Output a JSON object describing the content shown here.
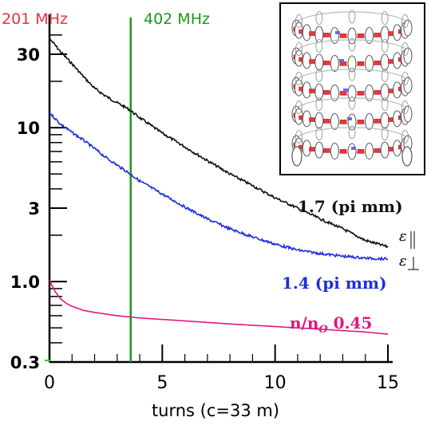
{
  "chart_data": {
    "type": "line",
    "x_axis": {
      "label": "turns (c=33 m)",
      "range": [
        0,
        15.5
      ],
      "ticks": [
        0,
        5,
        10,
        15
      ],
      "tick_labels": [
        "0",
        "5",
        "10",
        "15"
      ]
    },
    "y_axis": {
      "scale": "log",
      "range": [
        0.3,
        45
      ],
      "ticks": [
        0.3,
        1.0,
        3,
        10,
        30
      ],
      "tick_labels": [
        "0.3",
        "1.0",
        "3",
        "10",
        "30"
      ]
    },
    "markers": [
      {
        "label": "201 MHz",
        "x": null,
        "color": "#e8353a"
      },
      {
        "label": "402 MHz",
        "x": 3.6,
        "color": "#1a9a1a"
      }
    ],
    "series": [
      {
        "label": "1.7 (pi mm)",
        "symbol": "ε∥",
        "color": "#111111",
        "x": [
          0,
          0.5,
          1,
          1.5,
          2,
          2.5,
          3,
          3.5,
          4,
          5,
          6,
          7,
          8,
          9,
          10,
          11,
          12,
          13,
          14,
          15
        ],
        "y": [
          38,
          31,
          26,
          21.5,
          18,
          16,
          14.5,
          13.2,
          11.6,
          9.2,
          7.5,
          6.1,
          5.0,
          4.2,
          3.5,
          3.0,
          2.55,
          2.2,
          1.85,
          1.68
        ]
      },
      {
        "label": "1.4 (pi mm)",
        "symbol": "ε⊥",
        "color": "#1d2ee0",
        "x": [
          0,
          0.5,
          1,
          1.5,
          2,
          2.5,
          3,
          3.5,
          4,
          5,
          6,
          7,
          8,
          9,
          10,
          11,
          12,
          13,
          14,
          15
        ],
        "y": [
          12.5,
          10.5,
          9.3,
          8.3,
          7.3,
          6.4,
          5.7,
          5.1,
          4.5,
          3.7,
          3.05,
          2.55,
          2.2,
          1.95,
          1.75,
          1.6,
          1.52,
          1.46,
          1.42,
          1.4
        ]
      },
      {
        "label": "n/n_O 0.45",
        "color": "#e0187e",
        "x": [
          0,
          0.25,
          0.5,
          0.75,
          1,
          1.5,
          2,
          3,
          4,
          6,
          8,
          10,
          12,
          14,
          15
        ],
        "y": [
          1.02,
          0.86,
          0.77,
          0.72,
          0.69,
          0.65,
          0.63,
          0.6,
          0.58,
          0.555,
          0.53,
          0.51,
          0.49,
          0.47,
          0.455
        ]
      }
    ]
  },
  "inset": {
    "description_name": "helical-cooling-channel-illustration",
    "coil_color": "#e8353a",
    "ring_color": "#555555"
  }
}
